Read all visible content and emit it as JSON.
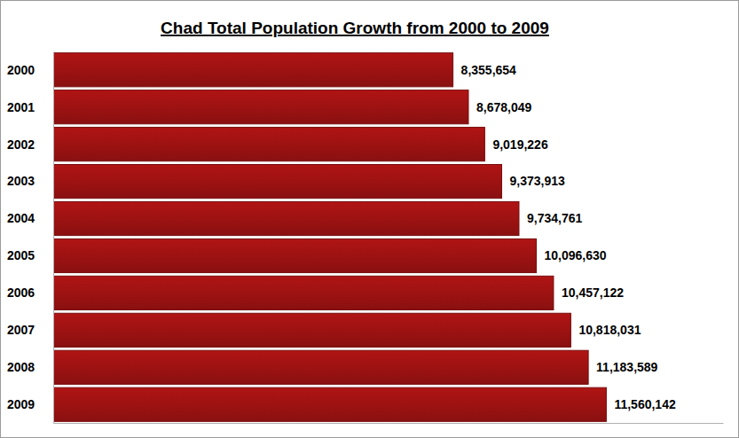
{
  "chart_data": {
    "type": "bar",
    "title": "Chad Total Population Growth from 2000 to 2009",
    "orientation": "horizontal",
    "categories": [
      "2000",
      "2001",
      "2002",
      "2003",
      "2004",
      "2005",
      "2006",
      "2007",
      "2008",
      "2009"
    ],
    "values": [
      8355654,
      8678049,
      9019226,
      9373913,
      9734761,
      10096630,
      10457122,
      10818031,
      11183589,
      11560142
    ],
    "value_labels": [
      "8,355,654",
      "8,678,049",
      "9,019,226",
      "9,373,913",
      "9,734,761",
      "10,096,630",
      "10,457,122",
      "10,818,031",
      "11,183,589",
      "11,560,142"
    ],
    "color": "#9e1212",
    "xlim": [
      0,
      14000000
    ],
    "grid": false,
    "data_labels": true,
    "tick_labels": "y"
  }
}
